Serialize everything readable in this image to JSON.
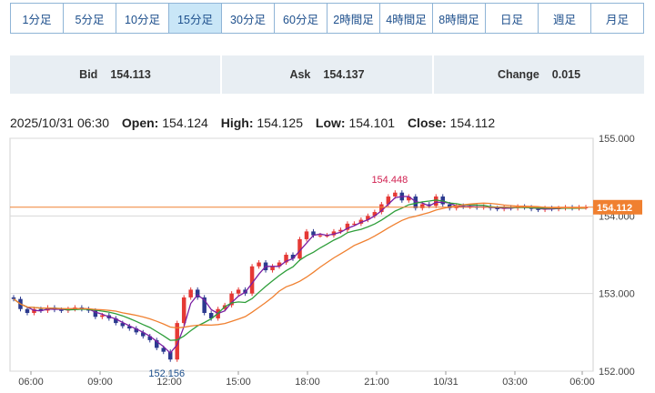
{
  "timeframes": {
    "items": [
      {
        "label": "1分足"
      },
      {
        "label": "5分足"
      },
      {
        "label": "10分足"
      },
      {
        "label": "15分足"
      },
      {
        "label": "30分足"
      },
      {
        "label": "60分足"
      },
      {
        "label": "2時間足"
      },
      {
        "label": "4時間足"
      },
      {
        "label": "8時間足"
      },
      {
        "label": "日足"
      },
      {
        "label": "週足"
      },
      {
        "label": "月足"
      }
    ],
    "active_index": 3
  },
  "quotes": {
    "bid_label": "Bid",
    "bid_value": "154.113",
    "ask_label": "Ask",
    "ask_value": "154.137",
    "change_label": "Change",
    "change_value": "0.015"
  },
  "ohlc": {
    "datetime": "2025/10/31 06:30",
    "open_label": "Open:",
    "open": "154.124",
    "high_label": "High:",
    "high": "154.125",
    "low_label": "Low:",
    "low": "154.101",
    "close_label": "Close:",
    "close": "154.112"
  },
  "colors": {
    "up": "#e53935",
    "down": "#2c3a8f",
    "ma_short": "#7b1fa2",
    "ma_mid": "#2e9e3a",
    "ma_long": "#f08030",
    "price_tag": "#f08030",
    "max_label": "#d02050",
    "min_label": "#1d4f8c"
  },
  "chart_data": {
    "type": "candlestick",
    "y_ticks": [
      "155.000",
      "154.000",
      "153.000",
      "152.000"
    ],
    "ylim": [
      152.0,
      155.0
    ],
    "x_ticks": [
      "06:00",
      "09:00",
      "12:00",
      "15:00",
      "18:00",
      "21:00",
      "10/31",
      "03:00",
      "06:00"
    ],
    "max_label": "154.448",
    "min_label": "152.156",
    "last_price": "154.112",
    "series": [
      {
        "name": "close",
        "values": [
          152.93,
          152.8,
          152.75,
          152.8,
          152.78,
          152.82,
          152.79,
          152.78,
          152.8,
          152.82,
          152.8,
          152.78,
          152.7,
          152.72,
          152.68,
          152.62,
          152.58,
          152.55,
          152.5,
          152.45,
          152.4,
          152.3,
          152.25,
          152.15,
          152.62,
          152.95,
          153.05,
          152.95,
          152.75,
          152.68,
          152.8,
          152.85,
          153.0,
          153.05,
          153.0,
          153.35,
          153.4,
          153.3,
          153.35,
          153.4,
          153.5,
          153.45,
          153.7,
          153.8,
          153.75,
          153.75,
          153.75,
          153.8,
          153.82,
          153.9,
          153.9,
          153.95,
          154.0,
          154.05,
          154.15,
          154.25,
          154.3,
          154.2,
          154.25,
          154.1,
          154.15,
          154.13,
          154.25,
          154.15,
          154.1,
          154.13,
          154.12,
          154.12,
          154.11,
          154.12,
          154.1,
          154.09,
          154.11,
          154.1,
          154.12,
          154.11,
          154.09,
          154.08,
          154.1,
          154.09,
          154.1,
          154.11,
          154.1,
          154.11,
          154.112
        ]
      }
    ]
  }
}
